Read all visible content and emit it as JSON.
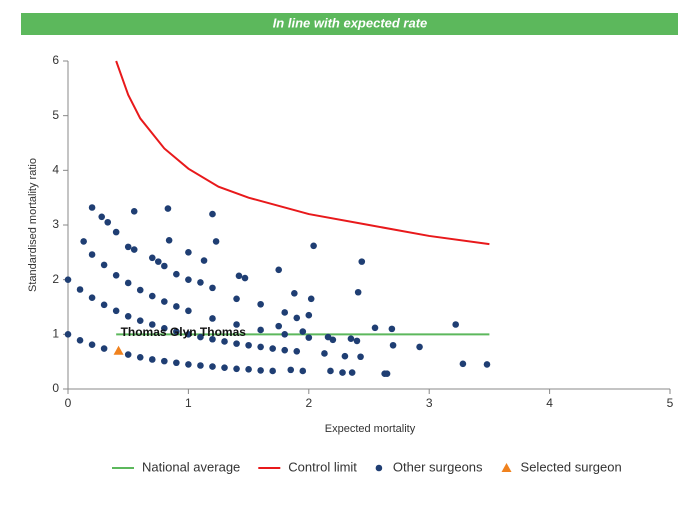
{
  "chart_data": {
    "type": "scatter",
    "title": "In line with expected rate",
    "x_label": "Expected mortality",
    "y_label": "Standardised mortality ratio",
    "xlim": [
      0,
      5
    ],
    "ylim": [
      0,
      6
    ],
    "xticks": [
      0,
      1,
      2,
      3,
      4,
      5
    ],
    "yticks": [
      0,
      1,
      2,
      3,
      4,
      5,
      6
    ],
    "grid": false,
    "legend": "bottom",
    "series": [
      {
        "name": "National average",
        "kind": "line",
        "color": "#5cb85c",
        "x": [
          0.4,
          3.5
        ],
        "values": [
          1,
          1
        ]
      },
      {
        "name": "Control limit",
        "kind": "line",
        "color": "#e8191b",
        "x": [
          0.4,
          0.5,
          0.6,
          0.8,
          1.0,
          1.25,
          1.5,
          2.0,
          2.5,
          3.0,
          3.5
        ],
        "values": [
          6.0,
          5.38,
          4.95,
          4.4,
          4.03,
          3.7,
          3.5,
          3.2,
          3.0,
          2.8,
          2.65
        ]
      },
      {
        "name": "Other surgeons",
        "kind": "scatter",
        "marker": "circle",
        "color": "#1f3e73",
        "x": [
          0,
          0.1,
          0.2,
          0.3,
          0.5,
          0.6,
          0.7,
          0.8,
          0.9,
          1.0,
          1.1,
          1.2,
          1.3,
          1.4,
          1.5,
          1.6,
          1.7,
          0,
          0.1,
          0.2,
          0.3,
          0.4,
          0.5,
          0.6,
          0.7,
          0.8,
          0.9,
          1.0,
          1.1,
          1.2,
          1.3,
          1.4,
          1.5,
          1.6,
          1.7,
          1.8,
          1.9,
          0.2,
          0.3,
          0.4,
          0.5,
          0.6,
          0.7,
          0.8,
          0.9,
          1.0,
          1.2,
          1.4,
          1.6,
          1.8,
          2.0,
          2.2,
          2.4,
          0.5,
          0.55,
          0.7,
          0.75,
          0.8,
          0.9,
          1.0,
          1.1,
          1.2,
          1.4,
          1.6,
          1.8,
          1.9,
          0.13,
          0.2,
          0.28,
          0.33,
          0.4,
          0.55,
          0.83,
          0.84,
          1.0,
          1.13,
          1.2,
          1.23,
          1.42,
          1.47,
          1.75,
          1.88,
          2.02,
          2.04,
          2.41,
          2.44,
          2.55,
          2.69,
          2.7,
          2.92,
          3.22,
          3.28,
          3.48,
          2.13,
          2.16,
          2.3,
          2.35,
          2.43,
          2.63,
          2.65,
          2.28,
          2.36,
          2.18,
          1.85,
          1.95,
          2.0,
          1.95,
          1.75
        ],
        "values": [
          1.0,
          0.89,
          0.81,
          0.74,
          0.63,
          0.58,
          0.54,
          0.51,
          0.48,
          0.45,
          0.43,
          0.41,
          0.39,
          0.37,
          0.36,
          0.34,
          0.33,
          2.0,
          1.82,
          1.67,
          1.54,
          1.43,
          1.33,
          1.25,
          1.18,
          1.11,
          1.05,
          1.0,
          0.95,
          0.91,
          0.87,
          0.83,
          0.8,
          0.77,
          0.74,
          0.71,
          0.69,
          2.46,
          2.27,
          2.08,
          1.94,
          1.81,
          1.7,
          1.6,
          1.51,
          1.43,
          1.29,
          1.18,
          1.08,
          1.0,
          0.94,
          0.9,
          0.88,
          2.6,
          2.55,
          2.4,
          2.33,
          2.25,
          2.1,
          2.0,
          1.95,
          1.85,
          1.65,
          1.55,
          1.4,
          1.3,
          2.7,
          3.32,
          3.15,
          3.05,
          2.87,
          3.25,
          3.3,
          2.72,
          2.5,
          2.35,
          3.2,
          2.7,
          2.07,
          2.03,
          2.18,
          1.75,
          1.65,
          2.62,
          1.77,
          2.33,
          1.12,
          1.1,
          0.8,
          0.77,
          1.18,
          0.46,
          0.45,
          0.65,
          0.95,
          0.6,
          0.92,
          0.59,
          0.28,
          0.28,
          0.3,
          0.3,
          0.33,
          0.35,
          0.33,
          1.35,
          1.05,
          1.15
        ]
      },
      {
        "name": "Selected surgeon",
        "kind": "scatter",
        "marker": "triangle",
        "color": "#f0821e",
        "x": [
          0.42
        ],
        "values": [
          0.7
        ],
        "point_labels": [
          "Thomas Glyn Thomas"
        ]
      }
    ]
  }
}
